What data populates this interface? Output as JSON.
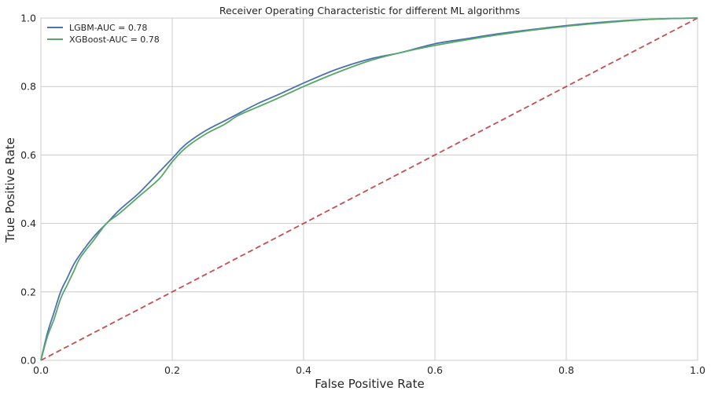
{
  "chart_data": {
    "type": "line",
    "title": "Receiver Operating Characteristic for different ML algorithms",
    "xlabel": "False Positive Rate",
    "ylabel": "True Positive Rate",
    "xlim": [
      0,
      1
    ],
    "ylim": [
      0,
      1
    ],
    "xticks": [
      "0.0",
      "0.2",
      "0.4",
      "0.6",
      "0.8",
      "1.0"
    ],
    "yticks": [
      "0.0",
      "0.2",
      "0.4",
      "0.6",
      "0.8",
      "1.0"
    ],
    "grid": true,
    "legend_position": "top-left",
    "series": [
      {
        "name": "LGBM-AUC = 0.78",
        "color": "#4c72b0",
        "x": [
          0,
          0.01,
          0.02,
          0.03,
          0.04,
          0.05,
          0.06,
          0.08,
          0.1,
          0.12,
          0.15,
          0.18,
          0.2,
          0.22,
          0.25,
          0.28,
          0.3,
          0.33,
          0.36,
          0.4,
          0.45,
          0.5,
          0.55,
          0.6,
          0.65,
          0.7,
          0.75,
          0.8,
          0.85,
          0.9,
          0.95,
          1.0
        ],
        "y": [
          0,
          0.08,
          0.14,
          0.2,
          0.24,
          0.28,
          0.31,
          0.36,
          0.4,
          0.44,
          0.49,
          0.55,
          0.59,
          0.63,
          0.67,
          0.7,
          0.72,
          0.75,
          0.775,
          0.81,
          0.85,
          0.88,
          0.9,
          0.925,
          0.94,
          0.955,
          0.967,
          0.978,
          0.987,
          0.994,
          0.998,
          1.0
        ]
      },
      {
        "name": "XGBoost-AUC = 0.78",
        "color": "#55a868",
        "x": [
          0,
          0.01,
          0.02,
          0.03,
          0.04,
          0.05,
          0.06,
          0.08,
          0.1,
          0.12,
          0.15,
          0.18,
          0.2,
          0.22,
          0.25,
          0.28,
          0.3,
          0.33,
          0.36,
          0.4,
          0.45,
          0.5,
          0.55,
          0.6,
          0.65,
          0.7,
          0.75,
          0.8,
          0.85,
          0.9,
          0.95,
          1.0
        ],
        "y": [
          0,
          0.07,
          0.12,
          0.18,
          0.22,
          0.26,
          0.3,
          0.35,
          0.4,
          0.43,
          0.48,
          0.53,
          0.58,
          0.62,
          0.66,
          0.69,
          0.715,
          0.74,
          0.765,
          0.8,
          0.84,
          0.875,
          0.9,
          0.92,
          0.937,
          0.952,
          0.965,
          0.976,
          0.985,
          0.993,
          0.998,
          1.0
        ]
      }
    ],
    "reference_line": {
      "x": [
        0,
        1
      ],
      "y": [
        0,
        1
      ],
      "color": "#c44e52",
      "style": "dashed"
    }
  }
}
